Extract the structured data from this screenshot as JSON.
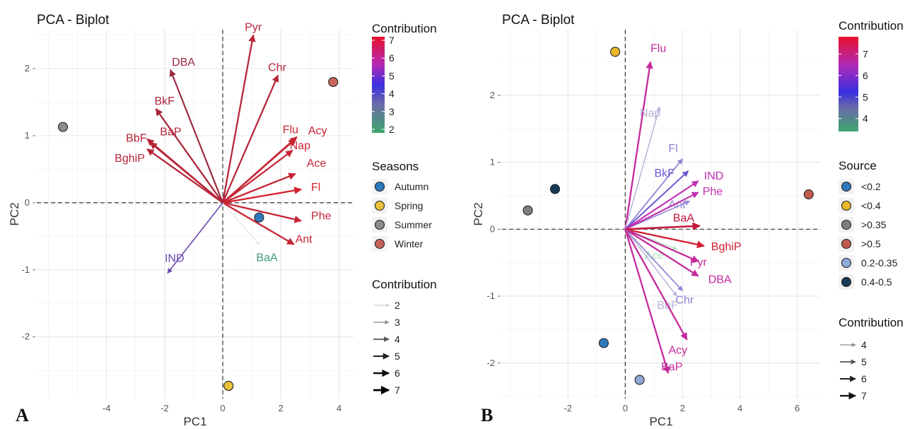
{
  "chart_data": [
    {
      "panel_label": "A",
      "type": "scatter",
      "title": "PCA - Biplot",
      "xlabel": "PC1",
      "ylabel": "PC2",
      "xlim": [
        -6.4,
        4.5
      ],
      "ylim": [
        -2.92,
        2.58
      ],
      "xticks": [
        -4,
        -2,
        0,
        2,
        4
      ],
      "yticks": [
        -2,
        -1,
        0,
        1,
        2
      ],
      "grid": true,
      "variables": [
        {
          "label": "Pyr",
          "x": 1.05,
          "y": 2.5,
          "contrib": 6.6,
          "color": "#b8253a"
        },
        {
          "label": "DBA",
          "x": -1.8,
          "y": 1.98,
          "contrib": 6.3,
          "color": "#9a2a3f"
        },
        {
          "label": "Chr",
          "x": 1.9,
          "y": 1.9,
          "contrib": 6.5,
          "color": "#b8253a"
        },
        {
          "label": "BkF",
          "x": -2.3,
          "y": 1.4,
          "contrib": 6.6,
          "color": "#a8243a"
        },
        {
          "label": "BbF",
          "x": -2.6,
          "y": 0.95,
          "contrib": 6.6,
          "color": "#b8253a"
        },
        {
          "label": "BaP",
          "x": -2.5,
          "y": 0.9,
          "contrib": 6.7,
          "color": "#b8253a"
        },
        {
          "label": "BghiP",
          "x": -2.6,
          "y": 0.8,
          "contrib": 6.6,
          "color": "#b8253a"
        },
        {
          "label": "Flu",
          "x": 2.5,
          "y": 0.95,
          "contrib": 6.7,
          "color": "#c62535"
        },
        {
          "label": "Acy",
          "x": 2.55,
          "y": 0.98,
          "contrib": 6.7,
          "color": "#c62535"
        },
        {
          "label": "Nap",
          "x": 2.4,
          "y": 0.78,
          "contrib": 6.6,
          "color": "#c62535"
        },
        {
          "label": "Ace",
          "x": 2.5,
          "y": 0.43,
          "contrib": 6.7,
          "color": "#c62535"
        },
        {
          "label": "Fl",
          "x": 2.7,
          "y": 0.2,
          "contrib": 6.9,
          "color": "#d4202e"
        },
        {
          "label": "Phe",
          "x": 2.7,
          "y": -0.27,
          "contrib": 6.8,
          "color": "#c62535"
        },
        {
          "label": "Ant",
          "x": 2.45,
          "y": -0.62,
          "contrib": 6.7,
          "color": "#c62535"
        },
        {
          "label": "BaA",
          "x": 1.25,
          "y": -0.62,
          "contrib": 2.0,
          "color": "#d7dcd8"
        },
        {
          "label": "IND",
          "x": -1.9,
          "y": -1.05,
          "contrib": 4.6,
          "color": "#6a48b0"
        }
      ],
      "observations": [
        {
          "group": "Winter",
          "x": 3.8,
          "y": 1.8
        },
        {
          "group": "Summer",
          "x": -5.5,
          "y": 1.13
        },
        {
          "group": "Autumn",
          "x": 1.25,
          "y": -0.22
        },
        {
          "group": "Spring",
          "x": 0.2,
          "y": -2.73
        }
      ],
      "contribution_colorbar": {
        "title": "Contribution",
        "ticks": [
          "7",
          "6",
          "5",
          "4",
          "3",
          "2"
        ],
        "min": 1.8,
        "max": 7.2
      },
      "group_legend": {
        "title": "Seasons",
        "items": [
          {
            "label": "Autumn",
            "color": "#2f79bd"
          },
          {
            "label": "Spring",
            "color": "#e9c23a"
          },
          {
            "label": "Summer",
            "color": "#8c8c8c"
          },
          {
            "label": "Winter",
            "color": "#c8645a"
          }
        ]
      },
      "contribution_legend": {
        "title": "Contribution",
        "items": [
          "2",
          "3",
          "4",
          "5",
          "6",
          "7"
        ]
      }
    },
    {
      "panel_label": "B",
      "type": "scatter",
      "title": "PCA - Biplot",
      "xlabel": "PC1",
      "ylabel": "PC2",
      "xlim": [
        -4.3,
        6.8
      ],
      "ylim": [
        -2.53,
        2.98
      ],
      "xticks": [
        -2,
        0,
        2,
        4,
        6
      ],
      "yticks": [
        -2,
        -1,
        0,
        1,
        2
      ],
      "grid": true,
      "variables": [
        {
          "label": "Flu",
          "x": 0.88,
          "y": 2.5,
          "contrib": 6.7,
          "color": "#c42a9a"
        },
        {
          "label": "Nap",
          "x": 1.2,
          "y": 1.83,
          "contrib": 4.1,
          "color": "#b6b2d8"
        },
        {
          "label": "Fl",
          "x": 2.0,
          "y": 1.05,
          "contrib": 5.0,
          "color": "#8a84d0"
        },
        {
          "label": "BkF",
          "x": 2.2,
          "y": 0.87,
          "contrib": 5.6,
          "color": "#6b58d0"
        },
        {
          "label": "IND",
          "x": 2.55,
          "y": 0.72,
          "contrib": 6.2,
          "color": "#c030b0"
        },
        {
          "label": "Ant",
          "x": 2.25,
          "y": 0.42,
          "contrib": 4.8,
          "color": "#9a8ad6"
        },
        {
          "label": "Phe",
          "x": 2.55,
          "y": 0.55,
          "contrib": 6.3,
          "color": "#c030b0"
        },
        {
          "label": "BaA",
          "x": 2.6,
          "y": 0.05,
          "contrib": 7.3,
          "color": "#c41838"
        },
        {
          "label": "BghiP",
          "x": 2.75,
          "y": -0.25,
          "contrib": 7.0,
          "color": "#d41e30"
        },
        {
          "label": "Ace",
          "x": 1.8,
          "y": -0.3,
          "contrib": 4.0,
          "color": "#b0e0c0"
        },
        {
          "label": "Pyr",
          "x": 2.55,
          "y": -0.48,
          "contrib": 6.6,
          "color": "#c42a9a"
        },
        {
          "label": "DBA",
          "x": 2.55,
          "y": -0.7,
          "contrib": 6.6,
          "color": "#c42a9a"
        },
        {
          "label": "Chr",
          "x": 2.0,
          "y": -0.92,
          "contrib": 4.6,
          "color": "#8a84d0"
        },
        {
          "label": "BbF",
          "x": 1.8,
          "y": -1.0,
          "contrib": 4.2,
          "color": "#b6b2d8"
        },
        {
          "label": "Acy",
          "x": 2.15,
          "y": -1.65,
          "contrib": 6.7,
          "color": "#c42a9a"
        },
        {
          "label": "BaP",
          "x": 1.5,
          "y": -2.15,
          "contrib": 6.6,
          "color": "#c42a9a"
        }
      ],
      "observations": [
        {
          "group": "<0.4",
          "x": -0.35,
          "y": 2.65
        },
        {
          "group": "0.4-0.5",
          "x": -2.45,
          "y": 0.6
        },
        {
          "group": ">0.35",
          "x": -3.4,
          "y": 0.28
        },
        {
          "group": ">0.5",
          "x": 6.4,
          "y": 0.52
        },
        {
          "group": "<0.2",
          "x": -0.75,
          "y": -1.7
        },
        {
          "group": "0.2-0.35",
          "x": 0.5,
          "y": -2.25
        }
      ],
      "contribution_colorbar": {
        "title": "Contribution",
        "ticks": [
          "7",
          "6",
          "5",
          "4"
        ],
        "min": 3.4,
        "max": 7.8
      },
      "group_legend": {
        "title": "Source",
        "items": [
          {
            "label": "<0.2",
            "color": "#2f79bd"
          },
          {
            "label": "<0.4",
            "color": "#e9b82a"
          },
          {
            "label": ">0.35",
            "color": "#7f7f7f"
          },
          {
            "label": ">0.5",
            "color": "#c05a50"
          },
          {
            "label": "0.2-0.35",
            "color": "#8fa8d6"
          },
          {
            "label": "0.4-0.5",
            "color": "#163a56"
          }
        ]
      },
      "contribution_legend": {
        "title": "Contribution",
        "items": [
          "4",
          "5",
          "6",
          "7"
        ]
      }
    }
  ]
}
